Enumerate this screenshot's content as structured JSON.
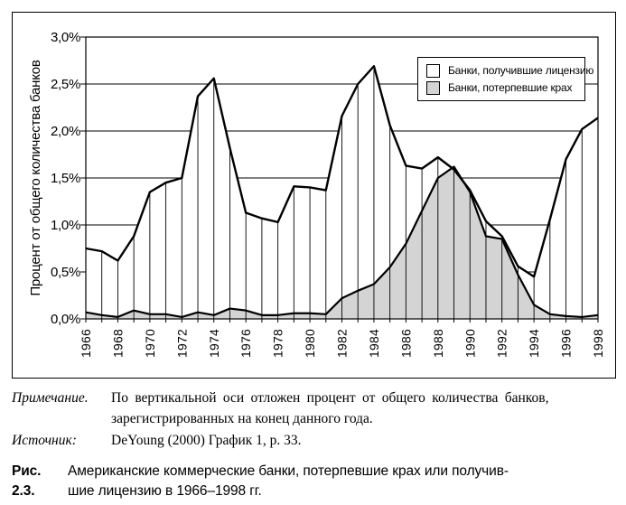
{
  "figure": {
    "note_label": "Примечание.",
    "note_lines": [
      "По вертикальной оси отложен процент от общего количества банков,",
      "зарегистрированных на конец данного года."
    ],
    "source_label": "Источник:",
    "source_text": "DeYoung (2000) График 1, p. 33.",
    "caption_label": "Рис. 2.3.",
    "caption_lines": [
      "Американские коммерческие банки, потерпевшие крах или получив-",
      "шие лицензию в 1966–1998 гг."
    ]
  },
  "chart_data": {
    "type": "area",
    "title": "",
    "xlabel": "",
    "ylabel": "Процент от общего количества банков",
    "ylim": [
      0,
      3.0
    ],
    "ytick_step": 0.5,
    "ytick_labels": [
      "0,0%",
      "0,5%",
      "1,0%",
      "1,5%",
      "2,0%",
      "2,5%",
      "3,0%"
    ],
    "x": [
      1966,
      1967,
      1968,
      1969,
      1970,
      1971,
      1972,
      1973,
      1974,
      1975,
      1976,
      1977,
      1978,
      1979,
      1980,
      1981,
      1982,
      1983,
      1984,
      1985,
      1986,
      1987,
      1988,
      1989,
      1990,
      1991,
      1992,
      1993,
      1994,
      1995,
      1996,
      1997,
      1998
    ],
    "xtick_labels": [
      "1966",
      "1968",
      "1970",
      "1972",
      "1974",
      "1976",
      "1978",
      "1980",
      "1982",
      "1984",
      "1986",
      "1988",
      "1990",
      "1992",
      "1994",
      "1996",
      "1998"
    ],
    "grid": true,
    "drop_lines": true,
    "legend_position": "top-right",
    "line_color": "#000000",
    "series": [
      {
        "name": "Банки, получившие лицензию",
        "fill": "#ffffff",
        "values": [
          0.75,
          0.72,
          0.62,
          0.88,
          1.35,
          1.45,
          1.5,
          2.37,
          2.56,
          1.82,
          1.13,
          1.07,
          1.03,
          1.41,
          1.4,
          1.37,
          2.16,
          2.5,
          2.69,
          2.06,
          1.63,
          1.6,
          1.72,
          1.59,
          1.37,
          1.04,
          0.88,
          0.56,
          0.45,
          1.06,
          1.7,
          2.02,
          2.14
        ]
      },
      {
        "name": "Банки, потерпевшие крах",
        "fill": "#d4d4d4",
        "values": [
          0.07,
          0.04,
          0.02,
          0.09,
          0.05,
          0.05,
          0.02,
          0.07,
          0.04,
          0.11,
          0.09,
          0.04,
          0.04,
          0.06,
          0.06,
          0.05,
          0.22,
          0.3,
          0.37,
          0.55,
          0.8,
          1.15,
          1.5,
          1.62,
          1.35,
          0.88,
          0.85,
          0.47,
          0.15,
          0.05,
          0.03,
          0.02,
          0.04
        ]
      }
    ]
  }
}
